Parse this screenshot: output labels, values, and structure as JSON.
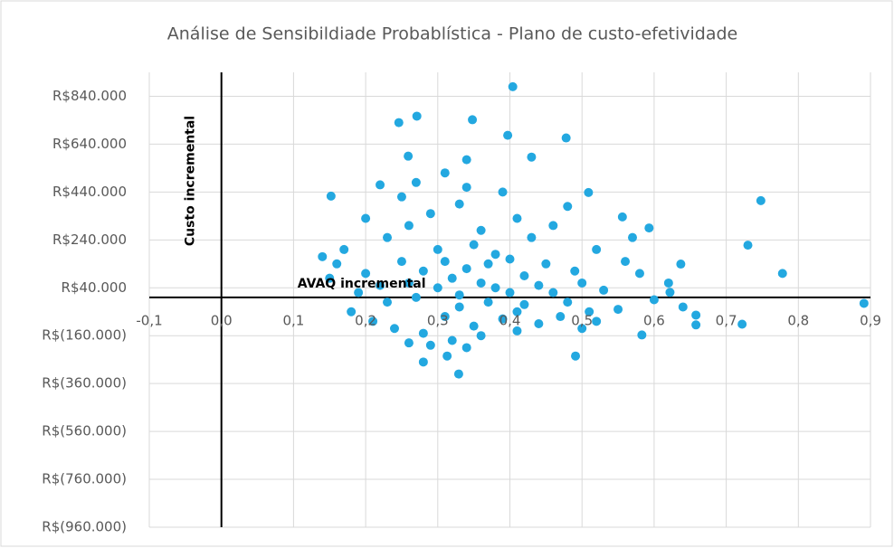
{
  "chart_data": {
    "type": "scatter",
    "title": "Análise de Sensibildiade Probablística - Plano de custo-efetividade",
    "x_label": "AVAQ incremental",
    "y_label": "Custo incremental",
    "color": "#23a8e0",
    "grid": true,
    "xlim": [
      -0.1,
      0.9
    ],
    "ylim": [
      -960000,
      940000
    ],
    "xticks": [
      {
        "value": -0.1,
        "label": "-0,1"
      },
      {
        "value": 0,
        "label": "0,0"
      },
      {
        "value": 0.1,
        "label": "0,1"
      },
      {
        "value": 0.2,
        "label": "0,2"
      },
      {
        "value": 0.3,
        "label": "0,3"
      },
      {
        "value": 0.4,
        "label": "0,4"
      },
      {
        "value": 0.5,
        "label": "0,5"
      },
      {
        "value": 0.6,
        "label": "0,6"
      },
      {
        "value": 0.7,
        "label": "0,7"
      },
      {
        "value": 0.8,
        "label": "0,8"
      },
      {
        "value": 0.9,
        "label": "0,9"
      }
    ],
    "yticks": [
      {
        "value": 840000,
        "label": "R$840.000"
      },
      {
        "value": 640000,
        "label": "R$640.000"
      },
      {
        "value": 440000,
        "label": "R$440.000"
      },
      {
        "value": 240000,
        "label": "R$240.000"
      },
      {
        "value": 40000,
        "label": "R$40.000"
      },
      {
        "value": -160000,
        "label": "R$(160.000)"
      },
      {
        "value": -360000,
        "label": "R$(360.000)"
      },
      {
        "value": -560000,
        "label": "R$(560.000)"
      },
      {
        "value": -760000,
        "label": "R$(760.000)"
      },
      {
        "value": -960000,
        "label": "R$(960.000)"
      }
    ],
    "x": [
      0.404,
      0.246,
      0.271,
      0.348,
      0.397,
      0.478,
      0.259,
      0.34,
      0.43,
      0.152,
      0.748,
      0.73,
      0.778,
      0.891,
      0.722,
      0.329,
      0.28,
      0.313,
      0.491,
      0.583,
      0.658,
      0.658,
      0.622,
      0.637,
      0.593,
      0.556,
      0.509,
      0.2,
      0.22,
      0.25,
      0.27,
      0.3,
      0.32,
      0.34,
      0.36,
      0.38,
      0.4,
      0.42,
      0.45,
      0.48,
      0.5,
      0.52,
      0.55,
      0.58,
      0.6,
      0.18,
      0.21,
      0.24,
      0.28,
      0.31,
      0.33,
      0.35,
      0.37,
      0.39,
      0.41,
      0.44,
      0.47,
      0.26,
      0.29,
      0.33,
      0.36,
      0.39,
      0.41,
      0.43,
      0.46,
      0.23,
      0.2,
      0.17,
      0.16,
      0.15,
      0.14,
      0.19,
      0.23,
      0.26,
      0.28,
      0.3,
      0.31,
      0.33,
      0.35,
      0.37,
      0.38,
      0.4,
      0.42,
      0.44,
      0.46,
      0.49,
      0.51,
      0.53,
      0.56,
      0.62,
      0.64,
      0.57,
      0.5,
      0.27,
      0.31,
      0.25,
      0.22,
      0.34,
      0.48,
      0.52,
      0.29,
      0.32,
      0.36,
      0.41,
      0.26,
      0.34
    ],
    "y": [
      880000,
      730000,
      757000,
      742000,
      677000,
      666000,
      590000,
      575000,
      586000,
      423000,
      404000,
      218000,
      100000,
      -25000,
      -112000,
      -320000,
      -270000,
      -245000,
      -245000,
      -157000,
      -74000,
      -115000,
      21000,
      139000,
      290000,
      336000,
      438000,
      100000,
      50000,
      150000,
      0,
      200000,
      80000,
      120000,
      60000,
      180000,
      20000,
      90000,
      140000,
      -20000,
      60000,
      200000,
      -50000,
      100000,
      -10000,
      -60000,
      -100000,
      -130000,
      -150000,
      -80000,
      -40000,
      -120000,
      -20000,
      -90000,
      -60000,
      -110000,
      -80000,
      300000,
      350000,
      390000,
      280000,
      440000,
      330000,
      250000,
      300000,
      250000,
      330000,
      200000,
      140000,
      80000,
      170000,
      20000,
      -20000,
      60000,
      110000,
      40000,
      150000,
      10000,
      220000,
      140000,
      40000,
      160000,
      -30000,
      50000,
      20000,
      110000,
      -60000,
      30000,
      150000,
      60000,
      -40000,
      250000,
      -130000,
      480000,
      520000,
      420000,
      470000,
      460000,
      380000,
      -100000,
      -200000,
      -180000,
      -160000,
      -140000,
      -190000,
      -210000
    ]
  }
}
